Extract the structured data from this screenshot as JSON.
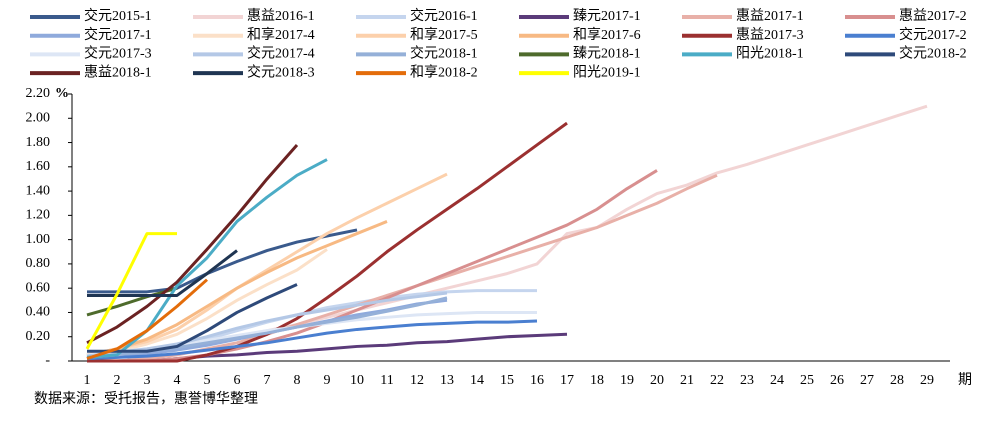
{
  "chart_data": {
    "type": "line",
    "y_unit": "%",
    "x_label": "期",
    "source": "数据来源：受托报告，惠誉博华整理",
    "categories": [
      "1",
      "2",
      "3",
      "4",
      "5",
      "6",
      "7",
      "8",
      "9",
      "10",
      "11",
      "12",
      "13",
      "14",
      "15",
      "16",
      "17",
      "18",
      "19",
      "20",
      "21",
      "22",
      "23",
      "24",
      "25",
      "26",
      "27",
      "28",
      "29"
    ],
    "ylim": [
      0,
      2.2
    ],
    "yticks": [
      {
        "value": 0,
        "label": "-"
      },
      {
        "value": 0.2,
        "label": "0.20"
      },
      {
        "value": 0.4,
        "label": "0.40"
      },
      {
        "value": 0.6,
        "label": "0.60"
      },
      {
        "value": 0.8,
        "label": "0.80"
      },
      {
        "value": 1,
        "label": "1.00"
      },
      {
        "value": 1.2,
        "label": "1.20"
      },
      {
        "value": 1.4,
        "label": "1.40"
      },
      {
        "value": 1.6,
        "label": "1.60"
      },
      {
        "value": 1.8,
        "label": "1.80"
      },
      {
        "value": 2,
        "label": "2.00"
      },
      {
        "value": 2.2,
        "label": "2.20"
      }
    ],
    "series": [
      {
        "name": "交元2015-1",
        "color": "#3a5a8c",
        "values": [
          0.57,
          0.57,
          0.57,
          0.6,
          0.72,
          0.82,
          0.91,
          0.98,
          1.03,
          1.08,
          null,
          null,
          null,
          null,
          null,
          null,
          null,
          null,
          null,
          null,
          null,
          null,
          null,
          null,
          null,
          null,
          null,
          null,
          null
        ]
      },
      {
        "name": "惠益2016-1",
        "color": "#f2d4d4",
        "values": [
          0.01,
          0.03,
          0.06,
          0.1,
          0.15,
          0.2,
          0.25,
          0.3,
          0.36,
          0.42,
          0.48,
          0.54,
          0.6,
          0.66,
          0.72,
          0.8,
          1.05,
          1.1,
          1.25,
          1.38,
          1.45,
          1.55,
          1.62,
          1.7,
          1.78,
          1.86,
          1.94,
          2.02,
          2.1
        ]
      },
      {
        "name": "交元2016-1",
        "color": "#c5d5ee",
        "values": [
          0.02,
          0.05,
          0.08,
          0.12,
          0.18,
          0.25,
          0.32,
          0.38,
          0.44,
          0.48,
          0.52,
          0.55,
          0.57,
          0.58,
          0.58,
          0.58,
          null,
          null,
          null,
          null,
          null,
          null,
          null,
          null,
          null,
          null,
          null,
          null,
          null
        ]
      },
      {
        "name": "臻元2017-1",
        "color": "#5b3b7a",
        "values": [
          0,
          0,
          0,
          0.02,
          0.04,
          0.05,
          0.07,
          0.08,
          0.1,
          0.12,
          0.13,
          0.15,
          0.16,
          0.18,
          0.2,
          0.21,
          0.22,
          null,
          null,
          null,
          null,
          null,
          null,
          null,
          null,
          null,
          null,
          null,
          null
        ]
      },
      {
        "name": "惠益2017-1",
        "color": "#e8b0a8",
        "values": [
          0,
          0,
          0.02,
          0.05,
          0.1,
          0.15,
          0.22,
          0.3,
          0.38,
          0.46,
          0.54,
          0.62,
          0.7,
          0.78,
          0.86,
          0.94,
          1.02,
          1.1,
          1.2,
          1.3,
          1.42,
          1.53,
          null,
          null,
          null,
          null,
          null,
          null,
          null
        ]
      },
      {
        "name": "惠益2017-2",
        "color": "#d88f8f",
        "values": [
          0,
          0,
          0,
          0.02,
          0.05,
          0.1,
          0.16,
          0.23,
          0.32,
          0.42,
          0.52,
          0.62,
          0.72,
          0.82,
          0.92,
          1.02,
          1.12,
          1.25,
          1.42,
          1.57,
          null,
          null,
          null,
          null,
          null,
          null,
          null,
          null,
          null
        ]
      },
      {
        "name": "交元2017-1",
        "color": "#8faadc",
        "values": [
          0.02,
          0.04,
          0.06,
          0.09,
          0.13,
          0.18,
          0.23,
          0.28,
          0.33,
          0.38,
          0.42,
          0.47,
          0.5,
          null,
          null,
          null,
          null,
          null,
          null,
          null,
          null,
          null,
          null,
          null,
          null,
          null,
          null,
          null,
          null
        ]
      },
      {
        "name": "和享2017-4",
        "color": "#fbe0c8",
        "values": [
          0.04,
          0.08,
          0.14,
          0.22,
          0.35,
          0.5,
          0.63,
          0.75,
          0.92,
          null,
          null,
          null,
          null,
          null,
          null,
          null,
          null,
          null,
          null,
          null,
          null,
          null,
          null,
          null,
          null,
          null,
          null,
          null,
          null
        ]
      },
      {
        "name": "和享2017-5",
        "color": "#fcd0ab",
        "values": [
          0.05,
          0.1,
          0.16,
          0.26,
          0.42,
          0.6,
          0.75,
          0.9,
          1.05,
          1.18,
          1.3,
          1.42,
          1.54,
          null,
          null,
          null,
          null,
          null,
          null,
          null,
          null,
          null,
          null,
          null,
          null,
          null,
          null,
          null,
          null
        ]
      },
      {
        "name": "和享2017-6",
        "color": "#f7b983",
        "values": [
          0.05,
          0.1,
          0.18,
          0.3,
          0.45,
          0.6,
          0.73,
          0.85,
          0.95,
          1.05,
          1.15,
          null,
          null,
          null,
          null,
          null,
          null,
          null,
          null,
          null,
          null,
          null,
          null,
          null,
          null,
          null,
          null,
          null,
          null
        ]
      },
      {
        "name": "惠益2017-3",
        "color": "#9b3030",
        "values": [
          0,
          0,
          0,
          0,
          0.05,
          0.12,
          0.22,
          0.35,
          0.52,
          0.7,
          0.9,
          1.08,
          1.25,
          1.42,
          1.6,
          1.78,
          1.96,
          null,
          null,
          null,
          null,
          null,
          null,
          null,
          null,
          null,
          null,
          null,
          null
        ]
      },
      {
        "name": "交元2017-2",
        "color": "#4a7fd0",
        "values": [
          0.02,
          0.03,
          0.04,
          0.06,
          0.09,
          0.12,
          0.15,
          0.19,
          0.23,
          0.26,
          0.28,
          0.3,
          0.31,
          0.32,
          0.32,
          0.33,
          null,
          null,
          null,
          null,
          null,
          null,
          null,
          null,
          null,
          null,
          null,
          null,
          null
        ]
      },
      {
        "name": "交元2017-3",
        "color": "#dde6f5",
        "values": [
          0.05,
          0.08,
          0.1,
          0.13,
          0.17,
          0.21,
          0.25,
          0.28,
          0.31,
          0.34,
          0.36,
          0.38,
          0.39,
          0.4,
          0.4,
          0.4,
          null,
          null,
          null,
          null,
          null,
          null,
          null,
          null,
          null,
          null,
          null,
          null,
          null
        ]
      },
      {
        "name": "交元2017-4",
        "color": "#b4c8e6",
        "values": [
          0.04,
          0.07,
          0.1,
          0.14,
          0.2,
          0.27,
          0.33,
          0.38,
          0.42,
          0.46,
          0.5,
          0.53,
          0.56,
          null,
          null,
          null,
          null,
          null,
          null,
          null,
          null,
          null,
          null,
          null,
          null,
          null,
          null,
          null,
          null
        ]
      },
      {
        "name": "交元2018-1",
        "color": "#95b0d8",
        "values": [
          0.03,
          0.05,
          0.08,
          0.11,
          0.15,
          0.19,
          0.23,
          0.28,
          0.32,
          0.36,
          0.41,
          0.46,
          0.52,
          null,
          null,
          null,
          null,
          null,
          null,
          null,
          null,
          null,
          null,
          null,
          null,
          null,
          null,
          null,
          null
        ]
      },
      {
        "name": "臻元2018-1",
        "color": "#4e6b2c",
        "values": [
          0.38,
          0.45,
          0.53,
          0.6,
          null,
          null,
          null,
          null,
          null,
          null,
          null,
          null,
          null,
          null,
          null,
          null,
          null,
          null,
          null,
          null,
          null,
          null,
          null,
          null,
          null,
          null,
          null,
          null,
          null
        ]
      },
      {
        "name": "阳光2018-1",
        "color": "#4bacc6",
        "values": [
          0.03,
          0.05,
          0.25,
          0.62,
          0.85,
          1.15,
          1.35,
          1.53,
          1.66,
          null,
          null,
          null,
          null,
          null,
          null,
          null,
          null,
          null,
          null,
          null,
          null,
          null,
          null,
          null,
          null,
          null,
          null,
          null,
          null
        ]
      },
      {
        "name": "交元2018-2",
        "color": "#2e4a7a",
        "values": [
          0.08,
          0.08,
          0.08,
          0.12,
          0.25,
          0.4,
          0.52,
          0.63,
          null,
          null,
          null,
          null,
          null,
          null,
          null,
          null,
          null,
          null,
          null,
          null,
          null,
          null,
          null,
          null,
          null,
          null,
          null,
          null,
          null
        ]
      },
      {
        "name": "惠益2018-1",
        "color": "#6b2222",
        "values": [
          0.15,
          0.28,
          0.45,
          0.65,
          0.92,
          1.2,
          1.5,
          1.78,
          null,
          null,
          null,
          null,
          null,
          null,
          null,
          null,
          null,
          null,
          null,
          null,
          null,
          null,
          null,
          null,
          null,
          null,
          null,
          null,
          null
        ]
      },
      {
        "name": "交元2018-3",
        "color": "#1f3552",
        "values": [
          0.54,
          0.54,
          0.54,
          0.54,
          0.72,
          0.91,
          null,
          null,
          null,
          null,
          null,
          null,
          null,
          null,
          null,
          null,
          null,
          null,
          null,
          null,
          null,
          null,
          null,
          null,
          null,
          null,
          null,
          null,
          null
        ]
      },
      {
        "name": "和享2018-2",
        "color": "#e36c0a",
        "values": [
          0.02,
          0.1,
          0.25,
          0.45,
          0.67,
          null,
          null,
          null,
          null,
          null,
          null,
          null,
          null,
          null,
          null,
          null,
          null,
          null,
          null,
          null,
          null,
          null,
          null,
          null,
          null,
          null,
          null,
          null,
          null
        ]
      },
      {
        "name": "阳光2019-1",
        "color": "#ffff00",
        "values": [
          0.1,
          0.55,
          1.05,
          1.05,
          null,
          null,
          null,
          null,
          null,
          null,
          null,
          null,
          null,
          null,
          null,
          null,
          null,
          null,
          null,
          null,
          null,
          null,
          null,
          null,
          null,
          null,
          null,
          null,
          null
        ]
      }
    ]
  }
}
